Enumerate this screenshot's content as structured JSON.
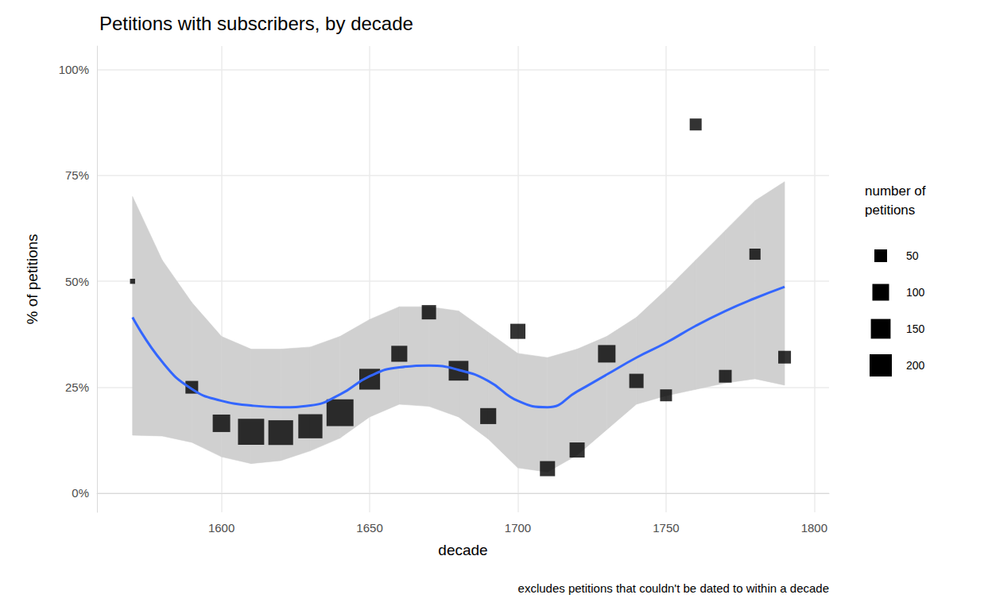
{
  "chart_data": {
    "type": "scatter",
    "title": "Petitions with subscribers, by decade",
    "x_label": "decade",
    "y_label": "% of petitions",
    "caption": "excludes petitions that couldn't be dated to within a decade",
    "grid": true,
    "xlim": [
      1558,
      1805
    ],
    "xticks": [
      1600,
      1650,
      1700,
      1750,
      1800
    ],
    "ylim": [
      -4.5,
      105.5
    ],
    "yticks": [
      {
        "value": 0,
        "label": "0%"
      },
      {
        "value": 25,
        "label": "25%"
      },
      {
        "value": 50,
        "label": "50%"
      },
      {
        "value": 75,
        "label": "75%"
      },
      {
        "value": 100,
        "label": "100%"
      }
    ],
    "size_legend": {
      "title": "number of\npetitions",
      "values": [
        50,
        100,
        150,
        200
      ]
    },
    "series": [
      {
        "type": "scatter",
        "marker": "square",
        "color": "#000000",
        "x": [
          1570,
          1590,
          1600,
          1610,
          1620,
          1630,
          1640,
          1650,
          1660,
          1670,
          1680,
          1690,
          1700,
          1710,
          1720,
          1730,
          1740,
          1750,
          1760,
          1770,
          1780,
          1790
        ],
        "values": [
          50,
          25,
          16.5,
          14.5,
          14.3,
          15.8,
          19,
          26.9,
          32.9,
          42.7,
          28.9,
          18.2,
          38.2,
          5.8,
          10.2,
          32.9,
          26.5,
          23.1,
          87,
          27.6,
          56.4,
          32.1
        ],
        "sizes": [
          2,
          50,
          112,
          290,
          255,
          240,
          310,
          170,
          90,
          68,
          150,
          90,
          78,
          78,
          78,
          112,
          68,
          42,
          42,
          50,
          35,
          50
        ]
      },
      {
        "type": "line",
        "color": "#3366ff",
        "x": [
          1570,
          1580,
          1590,
          1600,
          1610,
          1620,
          1630,
          1640,
          1650,
          1660,
          1670,
          1680,
          1690,
          1700,
          1710,
          1720,
          1730,
          1740,
          1750,
          1760,
          1770,
          1780,
          1790
        ],
        "values": [
          41.5,
          31,
          24.6,
          21.8,
          20.7,
          20.3,
          20.7,
          23.3,
          27.6,
          29.7,
          30.1,
          29.1,
          26.5,
          21.8,
          20.3,
          24,
          28,
          32,
          35.5,
          39.5,
          43,
          46,
          48.7
        ],
        "lower": [
          13.7,
          13.5,
          12,
          8.6,
          7,
          7.7,
          10,
          13,
          18,
          21,
          20.5,
          18,
          12.8,
          6,
          5,
          9,
          15,
          21,
          23,
          24.5,
          26,
          27,
          25.5
        ],
        "upper": [
          70,
          55,
          45,
          37,
          34,
          34,
          34.5,
          37,
          41,
          44,
          44,
          43,
          38,
          33,
          32,
          34,
          37,
          41.5,
          48,
          55,
          62,
          69,
          73.5
        ]
      }
    ]
  }
}
